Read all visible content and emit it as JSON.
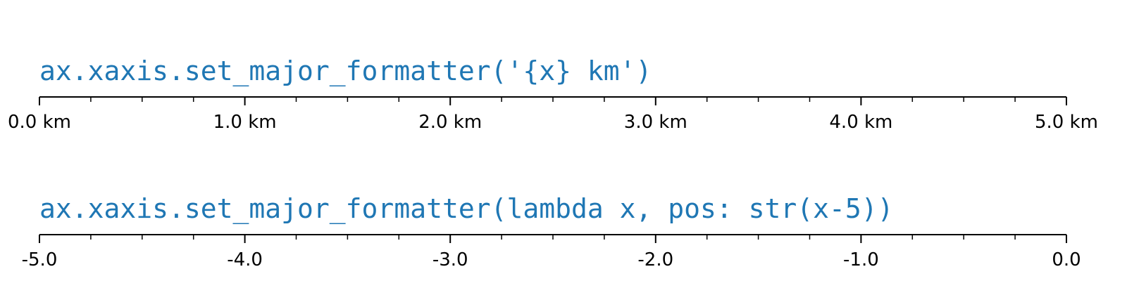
{
  "colors": {
    "title": "#1f77b4",
    "axis": "#000000",
    "background": "#ffffff"
  },
  "chart_data": [
    {
      "type": "axis",
      "title": "ax.xaxis.set_major_formatter('{x} km')",
      "xlim": [
        0,
        5
      ],
      "major_ticks": [
        0,
        1,
        2,
        3,
        4,
        5
      ],
      "minor_ticks_per_major": 4,
      "tick_labels": [
        "0.0 km",
        "1.0 km",
        "2.0 km",
        "3.0 km",
        "4.0 km",
        "5.0 km"
      ]
    },
    {
      "type": "axis",
      "title": "ax.xaxis.set_major_formatter(lambda x, pos: str(x-5))",
      "xlim": [
        0,
        5
      ],
      "major_ticks": [
        0,
        1,
        2,
        3,
        4,
        5
      ],
      "minor_ticks_per_major": 4,
      "tick_labels": [
        "-5.0",
        "-4.0",
        "-3.0",
        "-2.0",
        "-1.0",
        "0.0"
      ]
    }
  ]
}
